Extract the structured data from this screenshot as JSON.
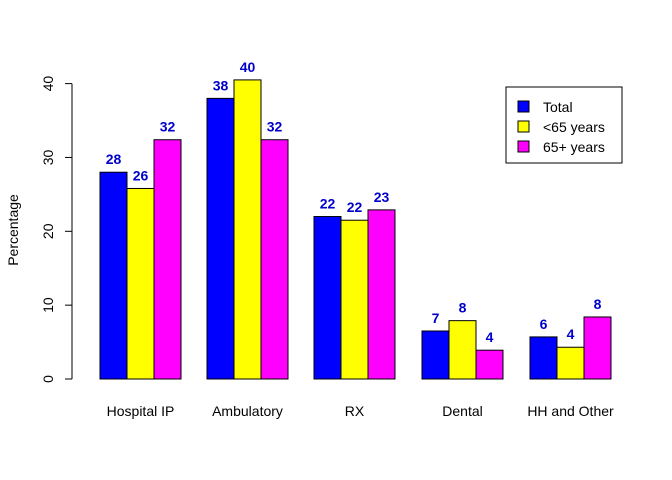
{
  "chart_data": {
    "type": "bar",
    "title": "",
    "xlabel": "",
    "ylabel": "Percentage",
    "ylim": [
      0,
      45
    ],
    "yticks": [
      0,
      10,
      20,
      30,
      40
    ],
    "grid": false,
    "legend_position": "top-right",
    "categories": [
      "Hospital IP",
      "Ambulatory",
      "RX",
      "Dental",
      "HH and Other"
    ],
    "series": [
      {
        "name": "Total",
        "color": "#0000ff",
        "values": [
          28,
          38,
          22,
          6.5,
          5.7
        ],
        "labels": [
          "28",
          "38",
          "22",
          "7",
          "6"
        ]
      },
      {
        "name": "<65 years",
        "color": "#ffff00",
        "values": [
          25.8,
          40.5,
          21.5,
          7.9,
          4.3
        ],
        "labels": [
          "26",
          "40",
          "22",
          "8",
          "4"
        ]
      },
      {
        "name": "65+ years",
        "color": "#ff00ff",
        "values": [
          32.4,
          32.4,
          22.9,
          3.9,
          8.4
        ],
        "labels": [
          "32",
          "32",
          "23",
          "4",
          "8"
        ]
      }
    ],
    "data_label_color": "#0000cc"
  }
}
